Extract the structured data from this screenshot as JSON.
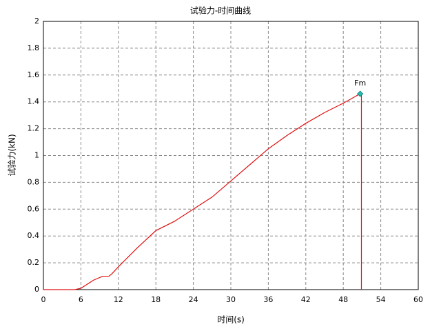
{
  "chart_data": {
    "type": "line",
    "title": "试验力-时间曲线",
    "x_label": "时间(s)",
    "y_label": "试验力(kN)",
    "x": [
      0,
      5,
      6,
      7,
      8,
      9.5,
      10.5,
      11,
      12,
      15,
      18,
      21,
      24,
      27,
      30,
      33,
      36,
      39,
      42,
      45,
      48,
      50.7,
      50.9,
      50.9
    ],
    "values": [
      0,
      0,
      0.01,
      0.04,
      0.07,
      0.1,
      0.1,
      0.12,
      0.17,
      0.31,
      0.44,
      0.51,
      0.6,
      0.69,
      0.81,
      0.93,
      1.05,
      1.15,
      1.24,
      1.32,
      1.39,
      1.46,
      1.45,
      0
    ],
    "color": "#e01010",
    "annotation": {
      "label": "Fm",
      "x": 50.7,
      "y": 1.46,
      "color": "#20c0b0"
    },
    "xlim": [
      0,
      60
    ],
    "xticks": [
      0,
      6,
      12,
      18,
      24,
      30,
      36,
      42,
      48,
      54,
      60
    ],
    "ylim": [
      0,
      2
    ],
    "yticks": [
      0,
      0.2,
      0.4,
      0.6,
      0.8,
      1,
      1.2,
      1.4,
      1.6,
      1.8,
      2
    ],
    "grid": true
  }
}
